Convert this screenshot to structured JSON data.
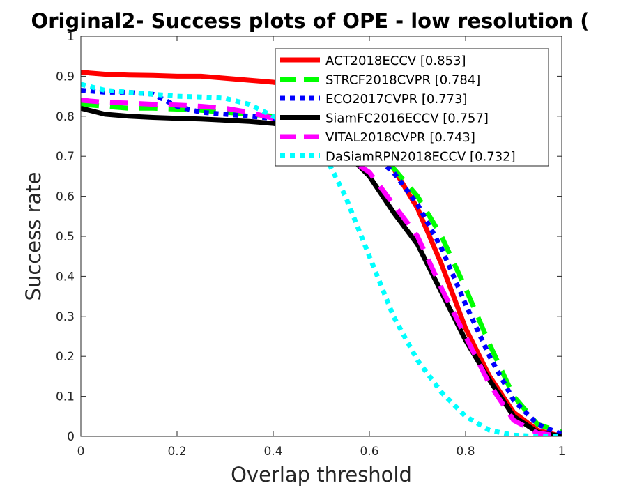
{
  "chart_data": {
    "type": "line",
    "title": "Original2- Success plots of OPE - low resolution (",
    "xlabel": "Overlap threshold",
    "ylabel": "Success rate",
    "xlim": [
      0,
      1
    ],
    "ylim": [
      0,
      1
    ],
    "xticks": [
      "0",
      "0.2",
      "0.4",
      "0.6",
      "0.8",
      "1"
    ],
    "yticks": [
      "0",
      "0.1",
      "0.2",
      "0.3",
      "0.4",
      "0.5",
      "0.6",
      "0.7",
      "0.8",
      "0.9",
      "1"
    ],
    "grid": false,
    "legend_position": "top-right",
    "series": [
      {
        "name": "ACT2018ECCV [0.853]",
        "color": "#ff0000",
        "style": "solid",
        "x": [
          0,
          0.05,
          0.1,
          0.15,
          0.2,
          0.25,
          0.3,
          0.35,
          0.4,
          0.45,
          0.5,
          0.55,
          0.6,
          0.65,
          0.7,
          0.75,
          0.8,
          0.85,
          0.9,
          0.95,
          1.0
        ],
        "y": [
          0.91,
          0.905,
          0.903,
          0.902,
          0.9,
          0.9,
          0.895,
          0.89,
          0.885,
          0.875,
          0.85,
          0.8,
          0.74,
          0.67,
          0.57,
          0.43,
          0.27,
          0.15,
          0.06,
          0.015,
          0.0
        ]
      },
      {
        "name": "STRCF2018CVPR [0.784]",
        "color": "#00ff00",
        "style": "dashed",
        "x": [
          0,
          0.05,
          0.1,
          0.15,
          0.2,
          0.25,
          0.3,
          0.35,
          0.4,
          0.45,
          0.5,
          0.55,
          0.6,
          0.65,
          0.7,
          0.75,
          0.8,
          0.85,
          0.9,
          0.95,
          1.0
        ],
        "y": [
          0.83,
          0.825,
          0.82,
          0.82,
          0.818,
          0.815,
          0.81,
          0.805,
          0.8,
          0.79,
          0.77,
          0.74,
          0.71,
          0.67,
          0.6,
          0.5,
          0.37,
          0.23,
          0.1,
          0.03,
          0.01
        ]
      },
      {
        "name": "ECO2017CVPR [0.773]",
        "color": "#0000ff",
        "style": "dotted",
        "x": [
          0,
          0.05,
          0.1,
          0.15,
          0.2,
          0.25,
          0.3,
          0.35,
          0.4,
          0.45,
          0.5,
          0.55,
          0.6,
          0.65,
          0.7,
          0.75,
          0.8,
          0.85,
          0.9,
          0.95,
          1.0
        ],
        "y": [
          0.865,
          0.86,
          0.86,
          0.855,
          0.825,
          0.81,
          0.805,
          0.8,
          0.795,
          0.79,
          0.77,
          0.74,
          0.71,
          0.66,
          0.58,
          0.47,
          0.33,
          0.2,
          0.09,
          0.03,
          0.005
        ]
      },
      {
        "name": "SiamFC2016ECCV [0.757]",
        "color": "#000000",
        "style": "solid",
        "x": [
          0,
          0.05,
          0.1,
          0.15,
          0.2,
          0.25,
          0.3,
          0.35,
          0.4,
          0.45,
          0.5,
          0.55,
          0.6,
          0.65,
          0.7,
          0.75,
          0.8,
          0.85,
          0.9,
          0.95,
          1.0
        ],
        "y": [
          0.82,
          0.805,
          0.8,
          0.797,
          0.795,
          0.793,
          0.79,
          0.787,
          0.782,
          0.77,
          0.75,
          0.71,
          0.65,
          0.56,
          0.48,
          0.36,
          0.24,
          0.14,
          0.05,
          0.01,
          0.0
        ]
      },
      {
        "name": "VITAL2018CVPR [0.743]",
        "color": "#ff00ff",
        "style": "dashed",
        "x": [
          0,
          0.05,
          0.1,
          0.15,
          0.2,
          0.25,
          0.3,
          0.35,
          0.4,
          0.45,
          0.5,
          0.55,
          0.6,
          0.65,
          0.7,
          0.75,
          0.8,
          0.85,
          0.9,
          0.95,
          1.0
        ],
        "y": [
          0.84,
          0.835,
          0.833,
          0.83,
          0.828,
          0.825,
          0.82,
          0.81,
          0.795,
          0.77,
          0.74,
          0.7,
          0.66,
          0.58,
          0.5,
          0.37,
          0.25,
          0.13,
          0.04,
          0.008,
          0.0
        ]
      },
      {
        "name": "DaSiamRPN2018ECCV [0.732]",
        "color": "#00ffff",
        "style": "dotted",
        "x": [
          0,
          0.05,
          0.1,
          0.15,
          0.2,
          0.25,
          0.3,
          0.35,
          0.4,
          0.45,
          0.5,
          0.55,
          0.6,
          0.65,
          0.7,
          0.75,
          0.8,
          0.85,
          0.9,
          0.95,
          1.0
        ],
        "y": [
          0.88,
          0.865,
          0.86,
          0.855,
          0.85,
          0.848,
          0.845,
          0.83,
          0.8,
          0.77,
          0.72,
          0.6,
          0.45,
          0.3,
          0.19,
          0.11,
          0.05,
          0.015,
          0.003,
          0.0,
          0.0
        ]
      }
    ]
  }
}
